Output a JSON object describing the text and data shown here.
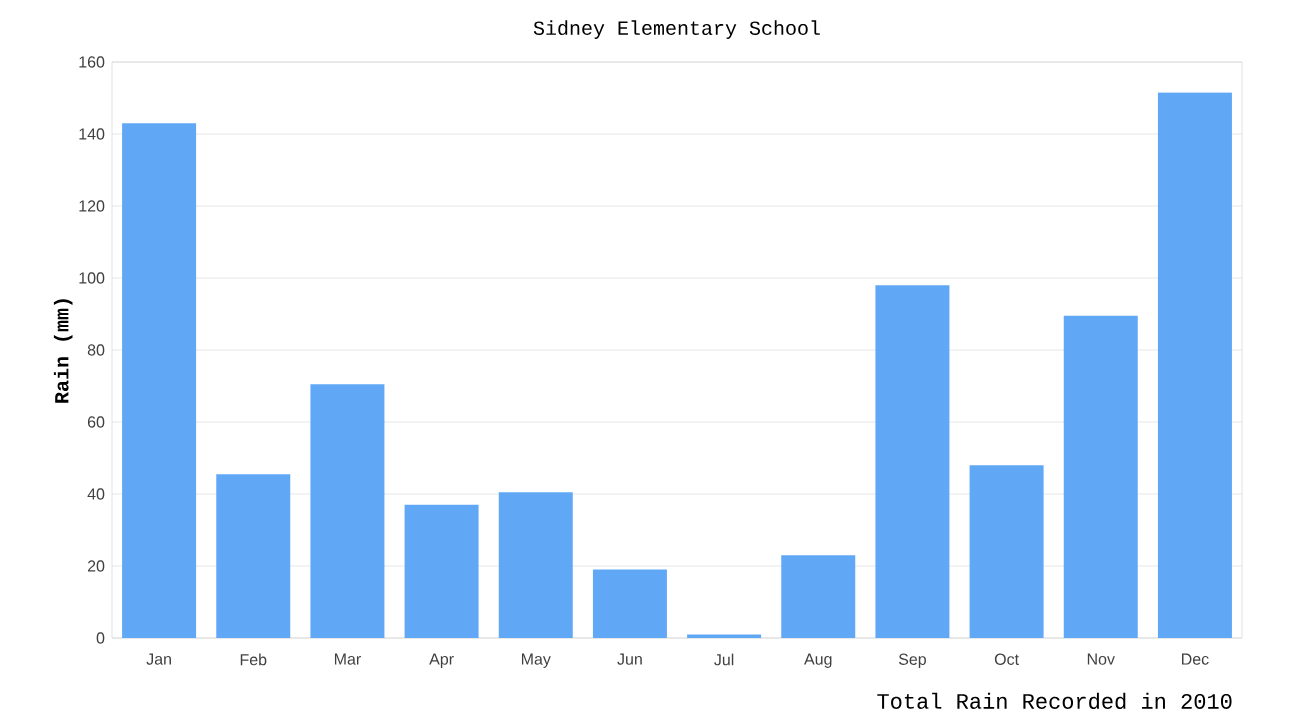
{
  "chart_data": {
    "type": "bar",
    "title": "Sidney Elementary School",
    "xlabel": "Total Rain Recorded in 2010",
    "ylabel": "Rain (mm)",
    "categories": [
      "Jan",
      "Feb",
      "Mar",
      "Apr",
      "May",
      "Jun",
      "Jul",
      "Aug",
      "Sep",
      "Oct",
      "Nov",
      "Dec"
    ],
    "values": [
      143,
      45.5,
      70.5,
      37,
      40.5,
      19,
      1,
      23,
      98,
      48,
      89.5,
      151.5
    ],
    "color": "#60a8f6",
    "ylim": [
      0,
      160
    ],
    "yticks": [
      0,
      20,
      40,
      60,
      80,
      100,
      120,
      140,
      160
    ],
    "grid": "y"
  }
}
